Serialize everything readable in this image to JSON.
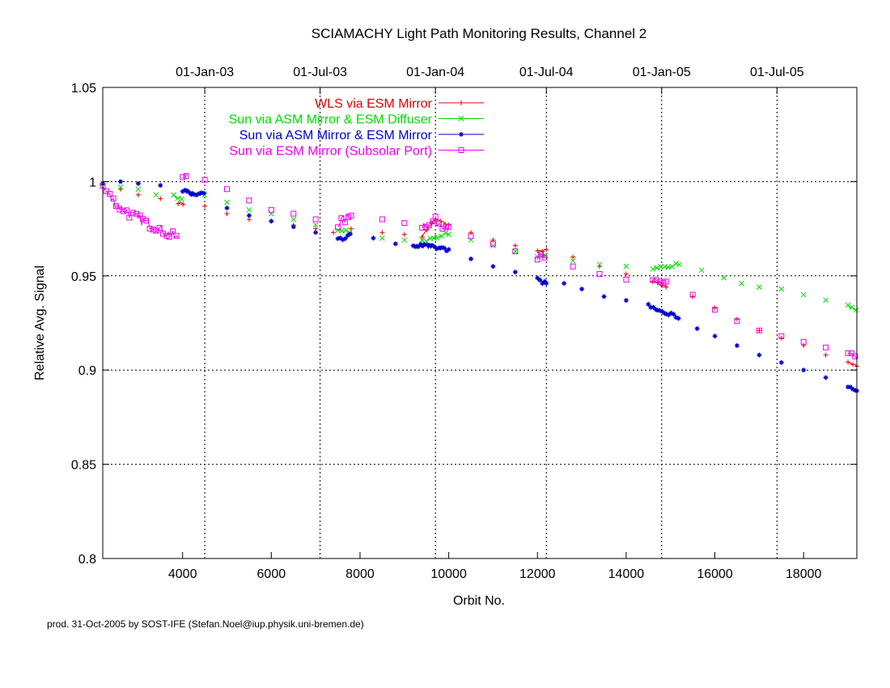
{
  "chart_data": {
    "type": "line",
    "title": "SCIAMACHY Light Path Monitoring Results, Channel 2",
    "xlabel": "Orbit No.",
    "ylabel": "Relative Avg. Signal",
    "xlim": [
      2200,
      19200
    ],
    "ylim": [
      0.8,
      1.05
    ],
    "x_ticks": [
      4000,
      6000,
      8000,
      10000,
      12000,
      14000,
      16000,
      18000
    ],
    "y_ticks": [
      0.8,
      0.85,
      0.9,
      0.95,
      1.0,
      1.05
    ],
    "y_tick_labels": [
      "0.8",
      "0.85",
      "0.9",
      "0.95",
      "1",
      "1.05"
    ],
    "top_axis": {
      "labels": [
        "01-Jan-03",
        "01-Jul-03",
        "01-Jan-04",
        "01-Jul-04",
        "01-Jan-05",
        "01-Jul-05"
      ],
      "orbits": [
        4500,
        7100,
        9700,
        12200,
        14800,
        17400
      ]
    },
    "grid": true,
    "legend_position": "top",
    "series": [
      {
        "name": "WLS via ESM Mirror",
        "color": "#e00000",
        "marker": "plus",
        "points": [
          [
            2200,
            0.999
          ],
          [
            2600,
            0.996
          ],
          [
            3000,
            0.993
          ],
          [
            3500,
            0.991
          ],
          [
            3900,
            0.989
          ],
          [
            4050,
            0.988
          ],
          [
            4500,
            0.987
          ],
          [
            5000,
            0.983
          ],
          [
            5500,
            0.98
          ],
          [
            6000,
            0.979
          ],
          [
            6500,
            0.977
          ],
          [
            7000,
            0.975
          ],
          [
            7400,
            0.973
          ],
          [
            7800,
            0.975
          ],
          [
            8500,
            0.973
          ],
          [
            9000,
            0.972
          ],
          [
            9400,
            0.971
          ],
          [
            9700,
            0.98
          ],
          [
            10000,
            0.977
          ],
          [
            10500,
            0.973
          ],
          [
            11000,
            0.969
          ],
          [
            11500,
            0.966
          ],
          [
            12000,
            0.963
          ],
          [
            12200,
            0.964
          ],
          [
            12800,
            0.96
          ],
          [
            13400,
            0.955
          ],
          [
            14000,
            0.951
          ],
          [
            14600,
            0.947
          ],
          [
            14900,
            0.944
          ],
          [
            15500,
            0.939
          ],
          [
            16000,
            0.933
          ],
          [
            16500,
            0.927
          ],
          [
            17000,
            0.921
          ],
          [
            17500,
            0.917
          ],
          [
            18000,
            0.913
          ],
          [
            18500,
            0.908
          ],
          [
            19000,
            0.904
          ],
          [
            19200,
            0.902
          ]
        ]
      },
      {
        "name": "Sun via ASM Mirror & ESM Diffuser",
        "color": "#00dd00",
        "marker": "cross",
        "points": [
          [
            2200,
            0.999
          ],
          [
            2600,
            0.997
          ],
          [
            3000,
            0.996
          ],
          [
            3400,
            0.993
          ],
          [
            3800,
            0.992
          ],
          [
            4000,
            0.991
          ],
          [
            4500,
            0.993
          ],
          [
            5000,
            0.989
          ],
          [
            5500,
            0.985
          ],
          [
            6000,
            0.983
          ],
          [
            6500,
            0.98
          ],
          [
            7000,
            0.977
          ],
          [
            7500,
            0.975
          ],
          [
            7800,
            0.972
          ],
          [
            8500,
            0.97
          ],
          [
            9000,
            0.969
          ],
          [
            9400,
            0.968
          ],
          [
            9700,
            0.971
          ],
          [
            10000,
            0.972
          ],
          [
            10500,
            0.969
          ],
          [
            11000,
            0.966
          ],
          [
            11500,
            0.963
          ],
          [
            12000,
            0.961
          ],
          [
            12200,
            0.961
          ],
          [
            12800,
            0.958
          ],
          [
            13400,
            0.956
          ],
          [
            14000,
            0.955
          ],
          [
            14600,
            0.954
          ],
          [
            14900,
            0.954
          ],
          [
            15200,
            0.956
          ],
          [
            15700,
            0.953
          ],
          [
            16200,
            0.949
          ],
          [
            16600,
            0.946
          ],
          [
            17000,
            0.944
          ],
          [
            17500,
            0.943
          ],
          [
            18000,
            0.94
          ],
          [
            18500,
            0.937
          ],
          [
            19000,
            0.934
          ],
          [
            19200,
            0.932
          ]
        ]
      },
      {
        "name": "Sun via ASM Mirror & ESM Mirror",
        "color": "#0000cc",
        "marker": "star",
        "points": [
          [
            2200,
            0.999
          ],
          [
            2600,
            1.0
          ],
          [
            3000,
            0.999
          ],
          [
            3500,
            0.998
          ],
          [
            4000,
            0.995
          ],
          [
            4200,
            0.994
          ],
          [
            4500,
            0.993
          ],
          [
            5000,
            0.986
          ],
          [
            5500,
            0.982
          ],
          [
            6000,
            0.979
          ],
          [
            6500,
            0.976
          ],
          [
            7000,
            0.973
          ],
          [
            7500,
            0.969
          ],
          [
            7800,
            0.972
          ],
          [
            8300,
            0.97
          ],
          [
            8800,
            0.967
          ],
          [
            9200,
            0.966
          ],
          [
            9400,
            0.966
          ],
          [
            9700,
            0.965
          ],
          [
            10000,
            0.964
          ],
          [
            10500,
            0.959
          ],
          [
            11000,
            0.955
          ],
          [
            11500,
            0.952
          ],
          [
            12000,
            0.948
          ],
          [
            12200,
            0.946
          ],
          [
            12600,
            0.946
          ],
          [
            13000,
            0.943
          ],
          [
            13500,
            0.939
          ],
          [
            14000,
            0.937
          ],
          [
            14500,
            0.934
          ],
          [
            14700,
            0.932
          ],
          [
            14900,
            0.93
          ],
          [
            15200,
            0.928
          ],
          [
            15600,
            0.922
          ],
          [
            16000,
            0.918
          ],
          [
            16500,
            0.913
          ],
          [
            17000,
            0.908
          ],
          [
            17500,
            0.904
          ],
          [
            18000,
            0.9
          ],
          [
            18500,
            0.896
          ],
          [
            19000,
            0.891
          ],
          [
            19200,
            0.889
          ]
        ]
      },
      {
        "name": "Sun via ESM Mirror (Subsolar Port)",
        "color": "#ee00ee",
        "marker": "square",
        "points": [
          [
            2200,
            0.997
          ],
          [
            2500,
            0.988
          ],
          [
            2800,
            0.983
          ],
          [
            3100,
            0.979
          ],
          [
            3400,
            0.976
          ],
          [
            3700,
            0.972
          ],
          [
            3900,
            0.97
          ],
          [
            4000,
            1.001
          ],
          [
            4100,
            1.004
          ],
          [
            4500,
            1.001
          ],
          [
            5000,
            0.996
          ],
          [
            5500,
            0.99
          ],
          [
            6000,
            0.985
          ],
          [
            6500,
            0.983
          ],
          [
            7000,
            0.98
          ],
          [
            7500,
            0.978
          ],
          [
            7800,
            0.982
          ],
          [
            8500,
            0.98
          ],
          [
            9000,
            0.978
          ],
          [
            9400,
            0.977
          ],
          [
            9700,
            0.979
          ],
          [
            10000,
            0.976
          ],
          [
            10500,
            0.971
          ],
          [
            11000,
            0.967
          ],
          [
            11500,
            0.963
          ],
          [
            12000,
            0.96
          ],
          [
            12200,
            0.96
          ],
          [
            12800,
            0.955
          ],
          [
            13400,
            0.951
          ],
          [
            14000,
            0.948
          ],
          [
            14600,
            0.946
          ],
          [
            14900,
            0.947
          ],
          [
            15500,
            0.94
          ],
          [
            16000,
            0.932
          ],
          [
            16500,
            0.926
          ],
          [
            17000,
            0.921
          ],
          [
            17500,
            0.918
          ],
          [
            18000,
            0.915
          ],
          [
            18500,
            0.912
          ],
          [
            19000,
            0.909
          ],
          [
            19200,
            0.906
          ]
        ]
      }
    ],
    "annotations": [
      "prod. 31-Oct-2005 by SOST-IFE (Stefan.Noel@iup.physik.uni-bremen.de)"
    ]
  },
  "footer": {
    "credit": "prod. 31-Oct-2005 by SOST-IFE (Stefan.Noel@iup.physik.uni-bremen.de)"
  }
}
